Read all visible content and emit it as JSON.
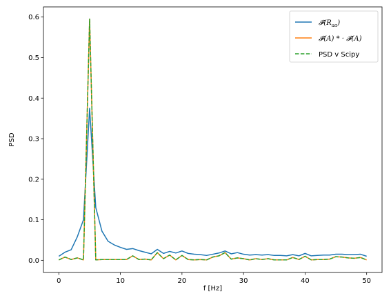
{
  "chart_data": {
    "type": "line",
    "xlabel": "f [Hz]",
    "ylabel": "PSD",
    "xlim": [
      -2.5,
      52.5
    ],
    "ylim": [
      -0.03,
      0.625
    ],
    "xticks": [
      0,
      10,
      20,
      30,
      40,
      50
    ],
    "xtick_labels": [
      "0",
      "10",
      "20",
      "30",
      "40",
      "50"
    ],
    "yticks": [
      0.0,
      0.1,
      0.2,
      0.3,
      0.4,
      0.5,
      0.6
    ],
    "ytick_labels": [
      "0.0",
      "0.1",
      "0.2",
      "0.3",
      "0.4",
      "0.5",
      "0.6"
    ],
    "grid": false,
    "legend_position": "top-right",
    "x": [
      0,
      1,
      2,
      3,
      4,
      5,
      6,
      7,
      8,
      9,
      10,
      11,
      12,
      13,
      14,
      15,
      16,
      17,
      18,
      19,
      20,
      21,
      22,
      23,
      24,
      25,
      26,
      27,
      28,
      29,
      30,
      31,
      32,
      33,
      34,
      35,
      36,
      37,
      38,
      39,
      40,
      41,
      42,
      43,
      44,
      45,
      46,
      47,
      48,
      49,
      50
    ],
    "series": [
      {
        "name": "F(Raa)",
        "color": "#1f77b4",
        "dash": "solid",
        "values": [
          0.01,
          0.02,
          0.026,
          0.058,
          0.1,
          0.375,
          0.13,
          0.072,
          0.047,
          0.038,
          0.032,
          0.027,
          0.029,
          0.024,
          0.02,
          0.016,
          0.027,
          0.017,
          0.022,
          0.018,
          0.023,
          0.017,
          0.015,
          0.014,
          0.012,
          0.015,
          0.018,
          0.023,
          0.016,
          0.019,
          0.015,
          0.013,
          0.014,
          0.013,
          0.014,
          0.012,
          0.012,
          0.011,
          0.014,
          0.011,
          0.017,
          0.011,
          0.012,
          0.013,
          0.013,
          0.015,
          0.015,
          0.014,
          0.014,
          0.015,
          0.01
        ]
      },
      {
        "name": "F(A) * · F(A)",
        "color": "#ff7f0e",
        "dash": "solid",
        "values": [
          0.001,
          0.008,
          0.002,
          0.006,
          0.001,
          0.595,
          0.001,
          0.002,
          0.002,
          0.002,
          0.002,
          0.002,
          0.011,
          0.002,
          0.003,
          0.001,
          0.019,
          0.004,
          0.013,
          0.001,
          0.012,
          0.002,
          0.001,
          0.002,
          0.001,
          0.008,
          0.011,
          0.019,
          0.003,
          0.006,
          0.004,
          0.001,
          0.004,
          0.002,
          0.004,
          0.001,
          0.001,
          0.001,
          0.007,
          0.002,
          0.01,
          0.001,
          0.002,
          0.002,
          0.003,
          0.009,
          0.008,
          0.006,
          0.005,
          0.007,
          0.001
        ]
      },
      {
        "name": "PSD v Scipy",
        "color": "#2ca02c",
        "dash": "dashed",
        "values": [
          0.001,
          0.008,
          0.002,
          0.006,
          0.001,
          0.595,
          0.001,
          0.002,
          0.002,
          0.002,
          0.002,
          0.002,
          0.011,
          0.002,
          0.003,
          0.001,
          0.019,
          0.004,
          0.013,
          0.001,
          0.012,
          0.002,
          0.001,
          0.002,
          0.001,
          0.008,
          0.011,
          0.019,
          0.003,
          0.006,
          0.004,
          0.001,
          0.004,
          0.002,
          0.004,
          0.001,
          0.001,
          0.001,
          0.007,
          0.002,
          0.01,
          0.001,
          0.002,
          0.002,
          0.003,
          0.009,
          0.008,
          0.006,
          0.005,
          0.007,
          0.001
        ]
      }
    ]
  },
  "legend": {
    "entries": [
      {
        "pre": "𝓕(",
        "mid": "R",
        "sub": "aa",
        "post": ")"
      },
      {
        "text": "𝓕(A) * · 𝓕(A)"
      },
      {
        "text": "PSD v Scipy"
      }
    ]
  }
}
